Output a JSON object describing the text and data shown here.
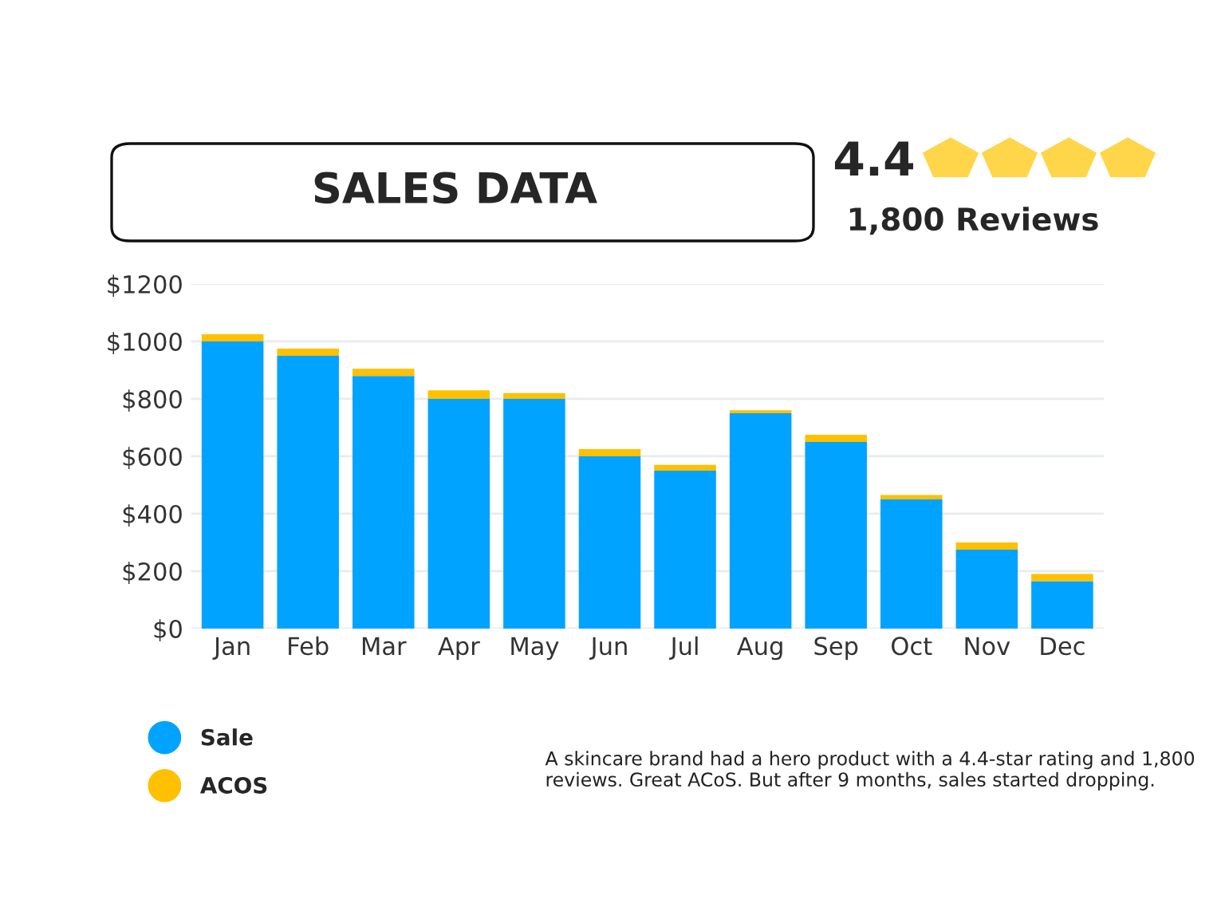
{
  "chart_data": {
    "type": "bar",
    "title": "SALES DATA",
    "stacked": true,
    "categories": [
      "Jan",
      "Feb",
      "Mar",
      "Apr",
      "May",
      "Jun",
      "Jul",
      "Aug",
      "Sep",
      "Oct",
      "Nov",
      "Dec"
    ],
    "series": [
      {
        "name": "Sale",
        "color": "#00a3ff",
        "values": [
          1000,
          950,
          880,
          800,
          800,
          600,
          550,
          750,
          650,
          450,
          275,
          165
        ]
      },
      {
        "name": "ACOS",
        "color": "#ffc000",
        "values": [
          25,
          25,
          25,
          30,
          20,
          25,
          20,
          10,
          25,
          15,
          25,
          25
        ]
      }
    ],
    "ylim": [
      0,
      1200
    ],
    "yticks": [
      {
        "value": 0,
        "label": "$0"
      },
      {
        "value": 200,
        "label": "$200"
      },
      {
        "value": 400,
        "label": "$400"
      },
      {
        "value": 600,
        "label": "$600"
      },
      {
        "value": 800,
        "label": "$800"
      },
      {
        "value": 1000,
        "label": "$1000"
      },
      {
        "value": 1200,
        "label": "$1200"
      }
    ],
    "grid": "y",
    "legend": "bottom left",
    "annotations": [
      "4.4",
      "1,800 Reviews",
      "A skincare brand had a hero product with a 4.4-star rating and 1,800 reviews. Great ACoS. But after 9 months, sales started dropping."
    ]
  }
}
